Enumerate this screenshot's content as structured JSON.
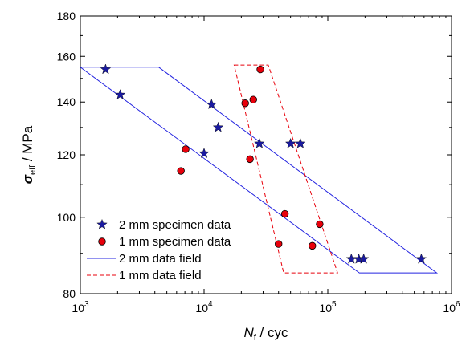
{
  "chart_data": {
    "type": "scatter",
    "x_scale": "log",
    "y_scale": "log",
    "xlim": [
      1000,
      1000000
    ],
    "ylim": [
      80,
      180
    ],
    "x_ticks": [
      {
        "value": 1000,
        "base": "10",
        "exp": "3"
      },
      {
        "value": 10000,
        "base": "10",
        "exp": "4"
      },
      {
        "value": 100000,
        "base": "10",
        "exp": "5"
      },
      {
        "value": 1000000,
        "base": "10",
        "exp": "6"
      }
    ],
    "y_ticks": [
      {
        "value": 80,
        "label": "80"
      },
      {
        "value": 100,
        "label": "100"
      },
      {
        "value": 120,
        "label": "120"
      },
      {
        "value": 140,
        "label": "140"
      },
      {
        "value": 160,
        "label": "160"
      },
      {
        "value": 180,
        "label": "180"
      }
    ],
    "xlabel": {
      "symbol": "N",
      "sub": "f",
      "rest": " / cyc"
    },
    "ylabel": {
      "symbol": "σ",
      "sub": "eff",
      "rest": " / MPa"
    },
    "legend_position": "bottom-left",
    "series": [
      {
        "name": "2 mm specimen data",
        "marker": "star",
        "color": "#1a1aa0",
        "points": [
          [
            1600,
            154
          ],
          [
            2100,
            143
          ],
          [
            11500,
            139
          ],
          [
            13000,
            130
          ],
          [
            10000,
            120.5
          ],
          [
            28000,
            124
          ],
          [
            50000,
            124
          ],
          [
            60000,
            124
          ],
          [
            155000,
            88.5
          ],
          [
            178000,
            88.5
          ],
          [
            195000,
            88.5
          ],
          [
            570000,
            88.5
          ]
        ]
      },
      {
        "name": "1 mm specimen data",
        "marker": "circle",
        "color": "#e8000b",
        "points": [
          [
            28500,
            154
          ],
          [
            25000,
            141
          ],
          [
            21500,
            139.5
          ],
          [
            7100,
            122
          ],
          [
            6500,
            114.5
          ],
          [
            23500,
            118.5
          ],
          [
            45000,
            101
          ],
          [
            86000,
            98
          ],
          [
            40000,
            92.5
          ],
          [
            75000,
            92
          ]
        ]
      }
    ],
    "fields": [
      {
        "name": "2 mm data field",
        "style": "solid",
        "color": "#2424e0",
        "polygon": [
          [
            1000,
            155
          ],
          [
            4300,
            155
          ],
          [
            760000,
            85
          ],
          [
            180000,
            85
          ]
        ]
      },
      {
        "name": "1 mm data field",
        "style": "dashed",
        "color": "#e8000b",
        "polygon": [
          [
            17500,
            156
          ],
          [
            33000,
            156
          ],
          [
            120000,
            85
          ],
          [
            44000,
            85
          ]
        ]
      }
    ]
  }
}
